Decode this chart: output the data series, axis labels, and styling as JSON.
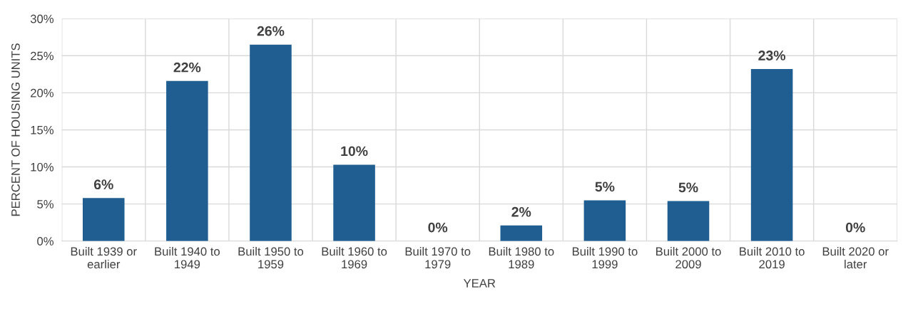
{
  "chart_data": {
    "type": "bar",
    "xlabel": "YEAR",
    "ylabel": "PERCENT OF HOUSING UNITS",
    "categories": [
      "Built 1939 or\nearlier",
      "Built 1940 to\n1949",
      "Built 1950 to\n1959",
      "Built 1960 to\n1969",
      "Built 1970 to\n1979",
      "Built 1980 to\n1989",
      "Built 1990 to\n1999",
      "Built 2000 to\n2009",
      "Built 2010 to\n2019",
      "Built 2020 or\nlater"
    ],
    "values": [
      5.8,
      21.6,
      26.5,
      10.3,
      0,
      2.1,
      5.5,
      5.4,
      23.2,
      0
    ],
    "value_labels": [
      "6%",
      "22%",
      "26%",
      "10%",
      "0%",
      "2%",
      "5%",
      "5%",
      "23%",
      "0%"
    ],
    "color": "#205e91",
    "ylim": [
      0,
      30
    ],
    "yticks": [
      {
        "value": 0,
        "label": "0%"
      },
      {
        "value": 5,
        "label": "5%"
      },
      {
        "value": 10,
        "label": "10%"
      },
      {
        "value": 15,
        "label": "15%"
      },
      {
        "value": 20,
        "label": "20%"
      },
      {
        "value": 25,
        "label": "25%"
      },
      {
        "value": 30,
        "label": "30%"
      }
    ],
    "grid": true
  }
}
